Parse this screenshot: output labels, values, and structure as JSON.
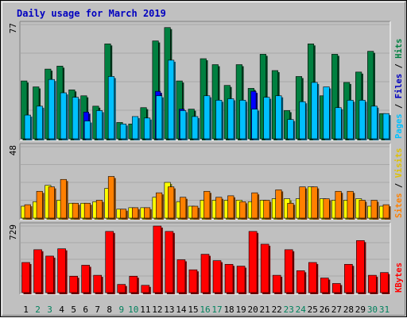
{
  "chart_data": {
    "type": "bar",
    "title": "Daily usage for March 2019",
    "categories": [
      "1",
      "2",
      "3",
      "4",
      "5",
      "6",
      "7",
      "8",
      "9",
      "10",
      "11",
      "12",
      "13",
      "14",
      "15",
      "16",
      "17",
      "18",
      "19",
      "20",
      "21",
      "22",
      "23",
      "24",
      "25",
      "26",
      "27",
      "28",
      "29",
      "30",
      "31"
    ],
    "weekend_days": [
      "2",
      "3",
      "9",
      "10",
      "16",
      "17",
      "23",
      "24",
      "30",
      "31"
    ],
    "panels": [
      {
        "id": "top",
        "max_label": "77",
        "ylim": [
          0,
          77
        ],
        "legend": [
          "Pages",
          "Files",
          "Hits"
        ],
        "series": [
          {
            "name": "Hits",
            "color": "#008040",
            "values": [
              39,
              35,
              47,
              49,
              33,
              29,
              22,
              64,
              11,
              10,
              21,
              66,
              75,
              39,
              20,
              54,
              50,
              36,
              50,
              34,
              57,
              46,
              19,
              42,
              64,
              29,
              57,
              38,
              45,
              59,
              17
            ]
          },
          {
            "name": "Files",
            "color": "#00c0ff",
            "values": [
              16,
              22,
              40,
              31,
              28,
              12,
              19,
              42,
              10,
              15,
              14,
              29,
              53,
              19,
              15,
              29,
              26,
              27,
              26,
              20,
              28,
              29,
              13,
              25,
              38,
              35,
              21,
              26,
              26,
              22,
              17
            ]
          },
          {
            "name": "Pages",
            "color": "#0000ff",
            "values": [
              0,
              0,
              0,
              0,
              0,
              18,
              0,
              0,
              0,
              0,
              0,
              32,
              0,
              20,
              0,
              0,
              0,
              0,
              0,
              32,
              0,
              0,
              0,
              0,
              0,
              0,
              0,
              0,
              0,
              0,
              0
            ]
          }
        ]
      },
      {
        "id": "middle",
        "max_label": "48",
        "ylim": [
          0,
          48
        ],
        "legend": [
          "Sites",
          "Visits"
        ],
        "series": [
          {
            "name": "Visits",
            "color": "#ffff00",
            "values": [
              8,
              11,
              22,
              12,
              10,
              10,
              11,
              20,
              6,
              7,
              7,
              14,
              24,
              11,
              8,
              12,
              12,
              12,
              12,
              11,
              12,
              13,
              13,
              13,
              21,
              13,
              12,
              12,
              13,
              8,
              8
            ]
          },
          {
            "name": "Sites",
            "color": "#ff8000",
            "values": [
              9,
              18,
              21,
              26,
              10,
              10,
              12,
              28,
              6,
              7,
              7,
              17,
              21,
              14,
              8,
              18,
              14,
              15,
              11,
              17,
              12,
              19,
              10,
              21,
              21,
              13,
              18,
              18,
              12,
              12,
              9
            ]
          }
        ]
      },
      {
        "id": "bottom",
        "max_label": "729",
        "ylim": [
          0,
          729
        ],
        "legend": [
          "KBytes"
        ],
        "series": [
          {
            "name": "KBytes",
            "color": "#ff0000",
            "values": [
              330,
              470,
              400,
              480,
              180,
              300,
              190,
              670,
              90,
              180,
              80,
              729,
              670,
              360,
              250,
              420,
              350,
              310,
              290,
              670,
              530,
              190,
              470,
              240,
              330,
              160,
              100,
              310,
              570,
              190,
              220
            ]
          }
        ]
      }
    ]
  }
}
